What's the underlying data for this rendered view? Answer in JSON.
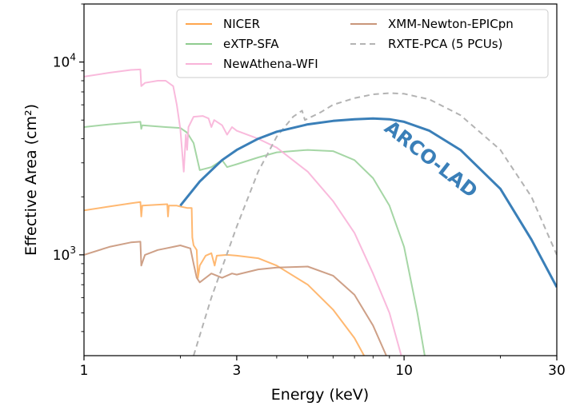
{
  "chart_data": {
    "type": "line",
    "title": "",
    "xlabel": "Energy (keV)",
    "ylabel": "Effective Area (cm²)",
    "xscale": "log",
    "yscale": "log",
    "xlim": [
      1,
      30
    ],
    "ylim": [
      300,
      20000
    ],
    "xticks": [
      {
        "value": 1,
        "label": "1"
      },
      {
        "value": 3,
        "label": "3"
      },
      {
        "value": 10,
        "label": "10"
      },
      {
        "value": 30,
        "label": "30"
      }
    ],
    "yticks": [
      {
        "value": 1000,
        "base": "10",
        "exp": "3"
      },
      {
        "value": 10000,
        "base": "10",
        "exp": "4"
      }
    ],
    "legend_position": "top-right",
    "series": [
      {
        "name": "NICER",
        "color": "#ffa64d",
        "dash": "",
        "width": 2,
        "opacity": 0.8,
        "points": [
          [
            1.0,
            1700
          ],
          [
            1.2,
            1780
          ],
          [
            1.4,
            1850
          ],
          [
            1.5,
            1880
          ],
          [
            1.51,
            1580
          ],
          [
            1.52,
            1800
          ],
          [
            1.7,
            1820
          ],
          [
            1.82,
            1830
          ],
          [
            1.83,
            1580
          ],
          [
            1.84,
            1800
          ],
          [
            1.95,
            1800
          ],
          [
            2.0,
            1780
          ],
          [
            2.1,
            1750
          ],
          [
            2.17,
            1750
          ],
          [
            2.18,
            1230
          ],
          [
            2.2,
            1120
          ],
          [
            2.25,
            1060
          ],
          [
            2.27,
            760
          ],
          [
            2.3,
            880
          ],
          [
            2.4,
            990
          ],
          [
            2.5,
            1020
          ],
          [
            2.56,
            880
          ],
          [
            2.6,
            990
          ],
          [
            2.8,
            1000
          ],
          [
            3.0,
            990
          ],
          [
            3.5,
            960
          ],
          [
            4.0,
            880
          ],
          [
            5.0,
            700
          ],
          [
            6.0,
            520
          ],
          [
            7.0,
            370
          ],
          [
            7.5,
            300
          ]
        ]
      },
      {
        "name": "eXTP-SFA",
        "color": "#8fcc8f",
        "dash": "",
        "width": 2,
        "opacity": 0.8,
        "points": [
          [
            1.0,
            4600
          ],
          [
            1.2,
            4750
          ],
          [
            1.4,
            4850
          ],
          [
            1.5,
            4900
          ],
          [
            1.51,
            4500
          ],
          [
            1.52,
            4700
          ],
          [
            1.8,
            4600
          ],
          [
            2.0,
            4550
          ],
          [
            2.1,
            4300
          ],
          [
            2.2,
            3800
          ],
          [
            2.3,
            2750
          ],
          [
            2.5,
            2850
          ],
          [
            2.7,
            3100
          ],
          [
            2.8,
            2850
          ],
          [
            3.0,
            2950
          ],
          [
            3.5,
            3200
          ],
          [
            4.0,
            3400
          ],
          [
            5.0,
            3500
          ],
          [
            6.0,
            3450
          ],
          [
            7.0,
            3100
          ],
          [
            8.0,
            2500
          ],
          [
            9.0,
            1800
          ],
          [
            10.0,
            1100
          ],
          [
            11.0,
            500
          ],
          [
            11.6,
            300
          ]
        ]
      },
      {
        "name": "NewAthena-WFI",
        "color": "#f8b3d8",
        "dash": "",
        "width": 2,
        "opacity": 0.9,
        "points": [
          [
            1.0,
            8400
          ],
          [
            1.2,
            8800
          ],
          [
            1.4,
            9100
          ],
          [
            1.5,
            9150
          ],
          [
            1.51,
            7500
          ],
          [
            1.55,
            7800
          ],
          [
            1.7,
            8000
          ],
          [
            1.8,
            8000
          ],
          [
            1.9,
            7500
          ],
          [
            1.95,
            6000
          ],
          [
            2.0,
            4500
          ],
          [
            2.05,
            2700
          ],
          [
            2.08,
            4200
          ],
          [
            2.1,
            3500
          ],
          [
            2.12,
            4600
          ],
          [
            2.2,
            5200
          ],
          [
            2.35,
            5250
          ],
          [
            2.45,
            5100
          ],
          [
            2.5,
            4600
          ],
          [
            2.55,
            5000
          ],
          [
            2.7,
            4700
          ],
          [
            2.8,
            4200
          ],
          [
            2.9,
            4600
          ],
          [
            3.0,
            4400
          ],
          [
            3.5,
            4000
          ],
          [
            4.0,
            3600
          ],
          [
            5.0,
            2700
          ],
          [
            6.0,
            1900
          ],
          [
            7.0,
            1300
          ],
          [
            8.0,
            800
          ],
          [
            9.0,
            500
          ],
          [
            9.8,
            300
          ]
        ]
      },
      {
        "name": "XMM-Newton-EPICpn",
        "color": "#c9967a",
        "dash": "",
        "width": 2,
        "opacity": 0.9,
        "points": [
          [
            1.0,
            1000
          ],
          [
            1.2,
            1100
          ],
          [
            1.4,
            1160
          ],
          [
            1.5,
            1170
          ],
          [
            1.51,
            880
          ],
          [
            1.55,
            1000
          ],
          [
            1.7,
            1060
          ],
          [
            1.8,
            1080
          ],
          [
            1.9,
            1100
          ],
          [
            2.0,
            1120
          ],
          [
            2.15,
            1080
          ],
          [
            2.2,
            900
          ],
          [
            2.25,
            760
          ],
          [
            2.3,
            720
          ],
          [
            2.5,
            800
          ],
          [
            2.7,
            760
          ],
          [
            2.9,
            800
          ],
          [
            3.0,
            790
          ],
          [
            3.5,
            840
          ],
          [
            4.0,
            860
          ],
          [
            5.0,
            870
          ],
          [
            6.0,
            780
          ],
          [
            7.0,
            620
          ],
          [
            8.0,
            430
          ],
          [
            8.8,
            300
          ]
        ]
      },
      {
        "name": "RXTE-PCA (5 PCUs)",
        "color": "#b3b3b3",
        "dash": "7,5",
        "width": 2,
        "opacity": 1,
        "points": [
          [
            2.2,
            300
          ],
          [
            2.5,
            600
          ],
          [
            3.0,
            1400
          ],
          [
            3.5,
            2700
          ],
          [
            4.0,
            4100
          ],
          [
            4.5,
            5200
          ],
          [
            4.8,
            5600
          ],
          [
            4.9,
            5000
          ],
          [
            5.5,
            5500
          ],
          [
            6.0,
            6000
          ],
          [
            7.0,
            6500
          ],
          [
            8.0,
            6800
          ],
          [
            9.0,
            6900
          ],
          [
            10.0,
            6850
          ],
          [
            12.0,
            6400
          ],
          [
            15.0,
            5300
          ],
          [
            20.0,
            3500
          ],
          [
            25.0,
            2000
          ],
          [
            30.0,
            1000
          ]
        ]
      },
      {
        "name": "",
        "color": "#3a7fb8",
        "dash": "",
        "width": 3,
        "opacity": 1,
        "points": [
          [
            2.0,
            1800
          ],
          [
            2.3,
            2400
          ],
          [
            2.7,
            3100
          ],
          [
            3.0,
            3500
          ],
          [
            3.5,
            4000
          ],
          [
            4.0,
            4350
          ],
          [
            5.0,
            4750
          ],
          [
            6.0,
            4950
          ],
          [
            7.0,
            5050
          ],
          [
            8.0,
            5100
          ],
          [
            9.0,
            5050
          ],
          [
            10.0,
            4900
          ],
          [
            12.0,
            4400
          ],
          [
            15.0,
            3500
          ],
          [
            20.0,
            2200
          ],
          [
            25.0,
            1200
          ],
          [
            30.0,
            680
          ]
        ]
      }
    ],
    "legend": [
      {
        "label": "NICER",
        "color": "#ffa64d",
        "dash": ""
      },
      {
        "label": "eXTP-SFA",
        "color": "#8fcc8f",
        "dash": ""
      },
      {
        "label": "NewAthena-WFI",
        "color": "#f8b3d8",
        "dash": ""
      },
      {
        "label": "XMM-Newton-EPICpn",
        "color": "#c9967a",
        "dash": ""
      },
      {
        "label": "RXTE-PCA (5 PCUs)",
        "color": "#b3b3b3",
        "dash": "7,5"
      }
    ],
    "annotations": [
      {
        "text": "ARCO-LAD",
        "color": "#3a7fb8",
        "x": 11.8,
        "y": 2950,
        "angle": 38
      }
    ]
  }
}
